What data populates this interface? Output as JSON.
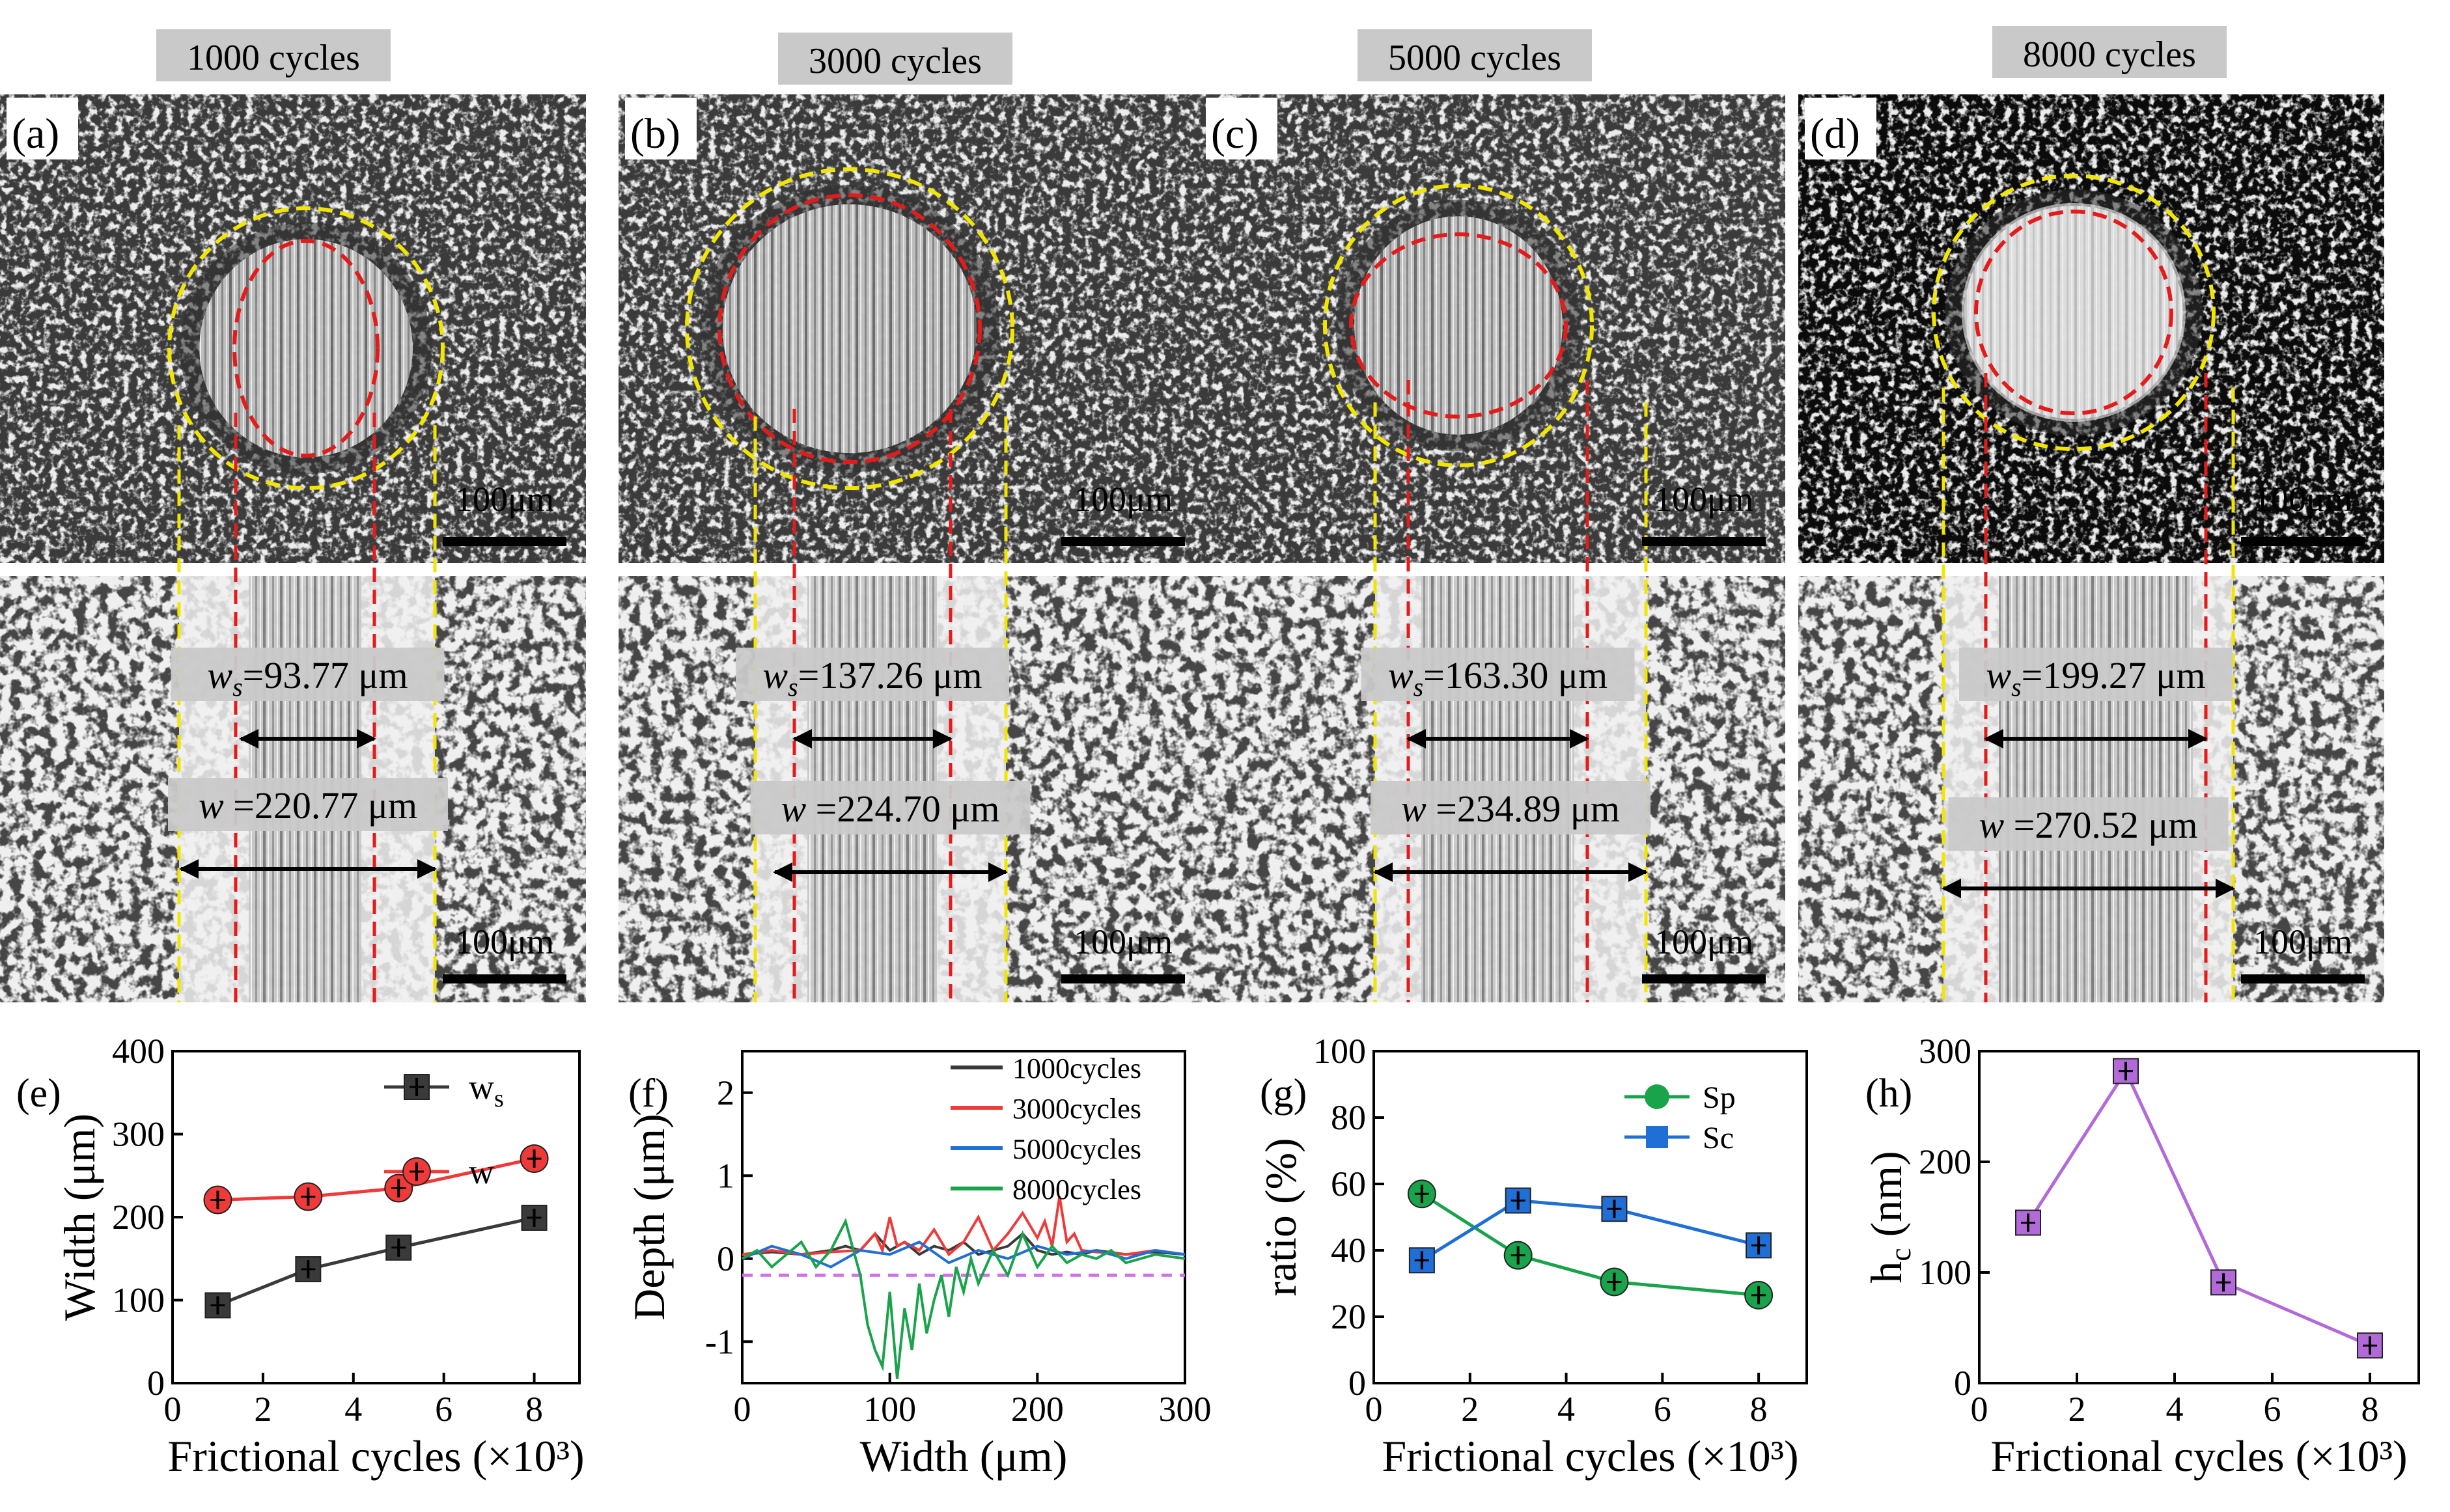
{
  "panels": [
    {
      "letter": "(a)",
      "cycles_label": "1000 cycles",
      "ws_label": "ws",
      "ws_value": "=93.77 μm",
      "w_label": "w",
      "w_value": " =220.77 μm",
      "scale_top": "100μm",
      "scale_bottom": "100μm"
    },
    {
      "letter": "(b)",
      "cycles_label": "3000 cycles",
      "ws_label": "ws",
      "ws_value": "=137.26 μm",
      "w_label": "w",
      "w_value": " =224.70 μm",
      "scale_top": "100μm",
      "scale_bottom": "100μm"
    },
    {
      "letter": "(c)",
      "cycles_label": "5000 cycles",
      "ws_label": "ws",
      "ws_value": "=163.30 μm",
      "w_label": "w",
      "w_value": " =234.89 μm",
      "scale_top": "100μm",
      "scale_bottom": "100μm"
    },
    {
      "letter": "(d)",
      "cycles_label": "8000 cycles",
      "ws_label": "ws",
      "ws_value": "=199.27 μm",
      "w_label": "w",
      "w_value": " =270.52 μm",
      "scale_top": "100μm",
      "scale_bottom": "100μm"
    }
  ],
  "colors": {
    "yellow_dash": "#f2e600",
    "red_dash": "#e41b1b",
    "black": "#3a3a3a",
    "red": "#f03a3a",
    "blue": "#1f6fd6",
    "green": "#19a34a",
    "purple": "#b36ad9",
    "magenta": "#cf72e6"
  },
  "chart_data": [
    {
      "id": "e",
      "letter": "(e)",
      "type": "line",
      "xlabel": "Frictional cycles (×10³)",
      "ylabel": "Width (μm)",
      "xlim": [
        0,
        9
      ],
      "ylim": [
        0,
        400
      ],
      "xticks": [
        0,
        2,
        4,
        6,
        8
      ],
      "yticks": [
        0,
        100,
        200,
        300,
        400
      ],
      "legend_position": "top-right",
      "series": [
        {
          "name": "ws",
          "marker": "square",
          "color": "#3a3a3a",
          "x": [
            1,
            3,
            5,
            8
          ],
          "y": [
            93.77,
            137.26,
            163.3,
            199.27
          ]
        },
        {
          "name": "w",
          "marker": "circle",
          "color": "#f03a3a",
          "x": [
            1,
            3,
            5,
            8
          ],
          "y": [
            220.77,
            224.7,
            234.89,
            270.52
          ]
        }
      ]
    },
    {
      "id": "f",
      "letter": "(f)",
      "type": "line",
      "xlabel": "Width (μm)",
      "ylabel": "Depth (μm)",
      "xlim": [
        0,
        300
      ],
      "ylim": [
        -1.5,
        2.5
      ],
      "xticks": [
        0,
        100,
        200,
        300
      ],
      "yticks": [
        -1,
        0,
        1,
        2
      ],
      "legend_position": "top-right",
      "reference_y": -0.2,
      "series": [
        {
          "name": "1000cycles",
          "color": "#3a3a3a",
          "x": [
            0,
            20,
            40,
            60,
            70,
            80,
            90,
            100,
            110,
            120,
            130,
            140,
            150,
            160,
            170,
            180,
            190,
            200,
            210,
            220,
            230,
            240,
            260,
            280,
            300
          ],
          "y": [
            0.05,
            0.08,
            0.05,
            0.1,
            0.15,
            0.1,
            0.3,
            0.1,
            0.2,
            0.05,
            0.15,
            0.1,
            0.2,
            0.05,
            0.1,
            0.15,
            0.3,
            0.1,
            0.05,
            0.08,
            0.05,
            0.1,
            0.05,
            0.08,
            0.05
          ]
        },
        {
          "name": "3000cycles",
          "color": "#f03a3a",
          "x": [
            0,
            20,
            40,
            60,
            80,
            90,
            95,
            100,
            105,
            110,
            120,
            130,
            140,
            150,
            160,
            170,
            180,
            190,
            200,
            205,
            210,
            215,
            220,
            225,
            230,
            240,
            260,
            280,
            300
          ],
          "y": [
            0.05,
            0.1,
            0.05,
            0.08,
            0.1,
            0.3,
            0.1,
            0.5,
            0.15,
            0.2,
            0.1,
            0.35,
            0.05,
            0.2,
            0.5,
            0.1,
            0.3,
            0.55,
            0.25,
            0.45,
            0.15,
            0.75,
            0.2,
            0.3,
            0.1,
            0.08,
            0.05,
            0.1,
            0.05
          ]
        },
        {
          "name": "5000cycles",
          "color": "#1f6fd6",
          "x": [
            0,
            20,
            40,
            60,
            80,
            100,
            120,
            140,
            160,
            180,
            200,
            220,
            240,
            260,
            280,
            300
          ],
          "y": [
            0.0,
            0.15,
            0.05,
            -0.1,
            0.1,
            0.05,
            0.2,
            -0.05,
            0.1,
            0.0,
            0.15,
            0.05,
            0.1,
            0.0,
            0.1,
            0.05
          ]
        },
        {
          "name": "8000cycles",
          "color": "#19a34a",
          "x": [
            0,
            10,
            20,
            30,
            40,
            50,
            60,
            70,
            80,
            85,
            90,
            95,
            100,
            105,
            110,
            115,
            120,
            125,
            130,
            135,
            140,
            145,
            150,
            155,
            160,
            170,
            180,
            190,
            200,
            210,
            220,
            230,
            240,
            250,
            260,
            280,
            300
          ],
          "y": [
            0.0,
            0.1,
            -0.1,
            0.05,
            0.2,
            -0.1,
            0.1,
            0.45,
            -0.2,
            -0.8,
            -1.1,
            -1.3,
            -0.4,
            -1.45,
            -0.6,
            -1.1,
            -0.3,
            -0.9,
            -0.5,
            -0.2,
            -0.7,
            -0.1,
            -0.4,
            0.0,
            -0.3,
            0.1,
            -0.2,
            0.3,
            -0.1,
            0.15,
            -0.05,
            0.05,
            0.0,
            0.1,
            -0.05,
            0.05,
            0.0
          ]
        }
      ]
    },
    {
      "id": "g",
      "letter": "(g)",
      "type": "line",
      "xlabel": "Frictional cycles (×10³)",
      "ylabel": "ratio (%)",
      "xlim": [
        0,
        9
      ],
      "ylim": [
        0,
        100
      ],
      "xticks": [
        0,
        2,
        4,
        6,
        8
      ],
      "yticks": [
        0,
        20,
        40,
        60,
        80,
        100
      ],
      "legend_position": "top-right",
      "series": [
        {
          "name": "Sp",
          "marker": "circle",
          "color": "#19a34a",
          "x": [
            1,
            3,
            5,
            8
          ],
          "y": [
            57,
            38.5,
            30.5,
            26.5
          ]
        },
        {
          "name": "Sc",
          "marker": "square",
          "color": "#1f6fd6",
          "x": [
            1,
            3,
            5,
            8
          ],
          "y": [
            37,
            55,
            52.5,
            41.5
          ]
        }
      ]
    },
    {
      "id": "h",
      "letter": "(h)",
      "type": "line",
      "xlabel": "Frictional cycles (×10³)",
      "ylabel": "hc (nm)",
      "xlim": [
        0,
        9
      ],
      "ylim": [
        0,
        300
      ],
      "xticks": [
        0,
        2,
        4,
        6,
        8
      ],
      "yticks": [
        0,
        100,
        200,
        300
      ],
      "series": [
        {
          "name": "",
          "marker": "square",
          "color": "#b36ad9",
          "x": [
            1,
            3,
            5,
            8
          ],
          "y": [
            145,
            282,
            91,
            34
          ]
        }
      ]
    }
  ]
}
